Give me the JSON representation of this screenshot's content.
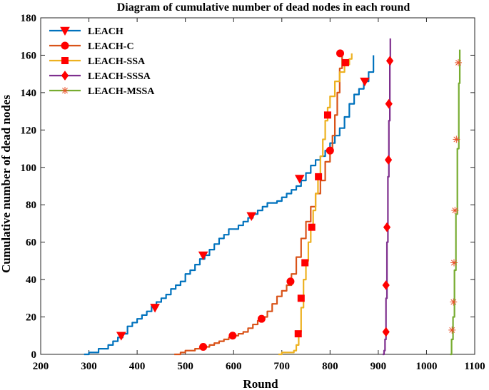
{
  "chart_data": {
    "type": "line",
    "title": "Diagram of cumulative number of dead nodes in each round",
    "xlabel": "Round",
    "ylabel": "Cumulative number of dead nodes",
    "xlim": [
      200,
      1100
    ],
    "ylim": [
      0,
      180
    ],
    "xticks": [
      200,
      300,
      400,
      500,
      600,
      700,
      800,
      900,
      1000,
      1100
    ],
    "yticks": [
      0,
      20,
      40,
      60,
      80,
      100,
      120,
      140,
      160,
      180
    ],
    "legend_position": "top-left",
    "series": [
      {
        "name": "LEACH",
        "color": "#0072BD",
        "marker": "triangle-down",
        "x": [
          290,
          300,
          320,
          330,
          340,
          350,
          360,
          370,
          380,
          390,
          400,
          410,
          420,
          430,
          440,
          450,
          460,
          470,
          480,
          490,
          500,
          510,
          520,
          530,
          540,
          550,
          560,
          570,
          580,
          590,
          600,
          610,
          620,
          630,
          640,
          650,
          660,
          670,
          680,
          690,
          700,
          710,
          720,
          730,
          740,
          750,
          760,
          770,
          780,
          790,
          800,
          810,
          820,
          830,
          840,
          850,
          860,
          870,
          880,
          890
        ],
        "y": [
          0,
          1,
          3,
          3,
          5,
          7,
          9,
          11,
          15,
          17,
          19,
          21,
          23,
          26,
          28,
          30,
          32,
          35,
          37,
          39,
          43,
          45,
          48,
          51,
          53,
          56,
          59,
          62,
          64,
          67,
          67,
          69,
          71,
          73,
          75,
          77,
          79,
          81,
          81,
          82,
          84,
          86,
          88,
          90,
          93,
          97,
          101,
          104,
          106,
          109,
          113,
          117,
          121,
          127,
          134,
          139,
          142,
          146,
          151,
          160
        ],
        "marker_x": [
          367,
          437,
          537,
          637,
          737,
          872
        ],
        "marker_y": [
          10,
          25,
          53,
          74,
          94,
          146
        ]
      },
      {
        "name": "LEACH-C",
        "color": "#D95319",
        "marker": "circle",
        "x": [
          477,
          490,
          500,
          510,
          520,
          530,
          540,
          550,
          560,
          570,
          580,
          590,
          600,
          610,
          620,
          630,
          640,
          650,
          660,
          670,
          680,
          690,
          700,
          710,
          720,
          730,
          740,
          750,
          760,
          770,
          780,
          790,
          800,
          805,
          810,
          815,
          820,
          825
        ],
        "y": [
          0,
          1,
          2,
          2,
          3,
          4,
          4,
          5,
          6,
          7,
          8,
          9,
          10,
          11,
          12,
          14,
          16,
          18,
          20,
          23,
          27,
          31,
          34,
          37,
          43,
          52,
          62,
          71,
          79,
          86,
          93,
          103,
          110,
          117,
          128,
          140,
          153,
          161
        ],
        "marker_x": [
          537,
          598,
          658,
          718,
          800,
          821
        ],
        "marker_y": [
          4,
          10,
          19,
          39,
          109,
          161
        ]
      },
      {
        "name": "LEACH-SSA",
        "color": "#EDB120",
        "marker": "square",
        "x": [
          693,
          700,
          710,
          720,
          725,
          730,
          735,
          740,
          745,
          750,
          755,
          760,
          765,
          770,
          775,
          780,
          785,
          790,
          795,
          800,
          810,
          820,
          830,
          840,
          845
        ],
        "y": [
          0,
          1,
          1,
          1,
          2,
          5,
          12,
          25,
          40,
          50,
          60,
          68,
          77,
          86,
          96,
          106,
          115,
          125,
          132,
          138,
          146,
          151,
          155,
          158,
          161
        ],
        "marker_x": [
          734,
          740,
          748,
          762,
          776,
          795,
          832
        ],
        "marker_y": [
          11,
          30,
          49,
          68,
          95,
          128,
          156
        ]
      },
      {
        "name": "LEACH-SSSA",
        "color": "#7E2F8E",
        "marker": "diamond",
        "x": [
          909,
          912,
          914,
          916,
          918,
          920,
          922,
          924,
          925
        ],
        "y": [
          0,
          2,
          8,
          30,
          60,
          95,
          125,
          155,
          169
        ],
        "marker_x": [
          916,
          916,
          918,
          921,
          922,
          924
        ],
        "marker_y": [
          12,
          37,
          68,
          104,
          134,
          157
        ],
        "extra_marker_x": [
          925
        ],
        "extra_marker_y": [
          157
        ]
      },
      {
        "name": "LEACH-MSSA",
        "color": "#77AC30",
        "marker": "asterisk",
        "x": [
          1049,
          1052,
          1055,
          1058,
          1061,
          1064,
          1067,
          1069
        ],
        "y": [
          0,
          8,
          20,
          45,
          75,
          110,
          145,
          163
        ],
        "marker_x": [
          1053,
          1056,
          1057,
          1059,
          1062,
          1066
        ],
        "marker_y": [
          13,
          28,
          49,
          77,
          115,
          156
        ]
      }
    ]
  }
}
